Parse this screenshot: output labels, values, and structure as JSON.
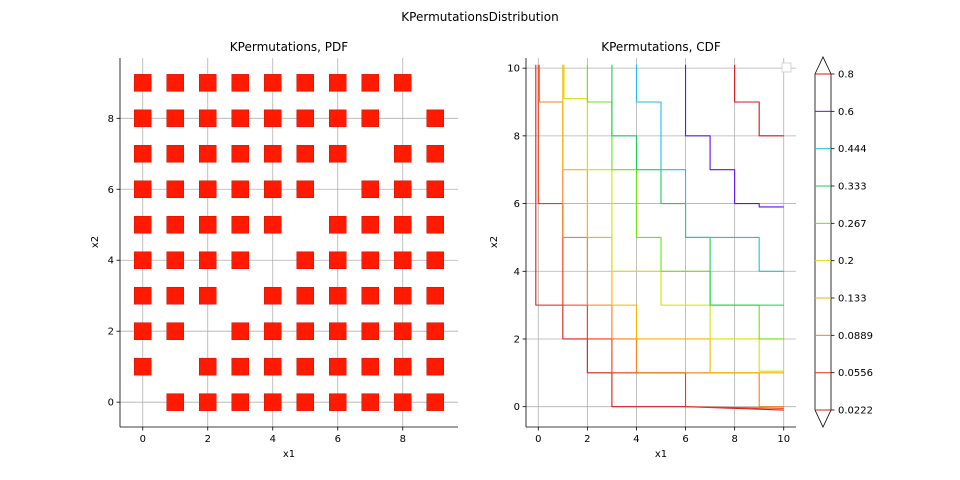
{
  "suptitle": "KPermutationsDistribution",
  "pdf_chart": {
    "type": "scatter",
    "title": "KPermutations, PDF",
    "xlabel": "x1",
    "ylabel": "x2",
    "xlim": [
      -0.7,
      9.7
    ],
    "ylim": [
      -0.7,
      9.7
    ],
    "xticks": [
      0,
      2,
      4,
      6,
      8
    ],
    "yticks": [
      0,
      2,
      4,
      6,
      8
    ],
    "grid": true,
    "marker": "square",
    "color": "#ff1a00",
    "points": [
      [
        0,
        1
      ],
      [
        0,
        2
      ],
      [
        0,
        3
      ],
      [
        0,
        4
      ],
      [
        0,
        5
      ],
      [
        0,
        6
      ],
      [
        0,
        7
      ],
      [
        0,
        8
      ],
      [
        0,
        9
      ],
      [
        1,
        0
      ],
      [
        1,
        2
      ],
      [
        1,
        3
      ],
      [
        1,
        4
      ],
      [
        1,
        5
      ],
      [
        1,
        6
      ],
      [
        1,
        7
      ],
      [
        1,
        8
      ],
      [
        1,
        9
      ],
      [
        2,
        0
      ],
      [
        2,
        1
      ],
      [
        2,
        3
      ],
      [
        2,
        4
      ],
      [
        2,
        5
      ],
      [
        2,
        6
      ],
      [
        2,
        7
      ],
      [
        2,
        8
      ],
      [
        2,
        9
      ],
      [
        3,
        0
      ],
      [
        3,
        1
      ],
      [
        3,
        2
      ],
      [
        3,
        4
      ],
      [
        3,
        5
      ],
      [
        3,
        6
      ],
      [
        3,
        7
      ],
      [
        3,
        8
      ],
      [
        3,
        9
      ],
      [
        4,
        0
      ],
      [
        4,
        1
      ],
      [
        4,
        2
      ],
      [
        4,
        3
      ],
      [
        4,
        5
      ],
      [
        4,
        6
      ],
      [
        4,
        7
      ],
      [
        4,
        8
      ],
      [
        4,
        9
      ],
      [
        5,
        0
      ],
      [
        5,
        1
      ],
      [
        5,
        2
      ],
      [
        5,
        3
      ],
      [
        5,
        4
      ],
      [
        5,
        6
      ],
      [
        5,
        7
      ],
      [
        5,
        8
      ],
      [
        5,
        9
      ],
      [
        6,
        0
      ],
      [
        6,
        1
      ],
      [
        6,
        2
      ],
      [
        6,
        3
      ],
      [
        6,
        4
      ],
      [
        6,
        5
      ],
      [
        6,
        7
      ],
      [
        6,
        8
      ],
      [
        6,
        9
      ],
      [
        7,
        0
      ],
      [
        7,
        1
      ],
      [
        7,
        2
      ],
      [
        7,
        3
      ],
      [
        7,
        4
      ],
      [
        7,
        5
      ],
      [
        7,
        6
      ],
      [
        7,
        8
      ],
      [
        7,
        9
      ],
      [
        8,
        0
      ],
      [
        8,
        1
      ],
      [
        8,
        2
      ],
      [
        8,
        3
      ],
      [
        8,
        4
      ],
      [
        8,
        5
      ],
      [
        8,
        6
      ],
      [
        8,
        7
      ],
      [
        8,
        9
      ],
      [
        9,
        0
      ],
      [
        9,
        1
      ],
      [
        9,
        2
      ],
      [
        9,
        3
      ],
      [
        9,
        4
      ],
      [
        9,
        5
      ],
      [
        9,
        6
      ],
      [
        9,
        7
      ],
      [
        9,
        8
      ]
    ]
  },
  "cdf_chart": {
    "type": "contour",
    "title": "KPermutations, CDF",
    "xlabel": "x1",
    "ylabel": "x2",
    "xlim": [
      -0.5,
      10.5
    ],
    "ylim": [
      -0.6,
      10.3
    ],
    "xticks": [
      0,
      2,
      4,
      6,
      8,
      10
    ],
    "yticks": [
      0,
      2,
      4,
      6,
      8,
      10
    ],
    "grid": true,
    "levels": [
      {
        "value": 0.0222,
        "label": "0.0222",
        "color": "#d4201a",
        "corners": [
          [
            -0.1,
            10.1
          ],
          [
            -0.1,
            3
          ],
          [
            1,
            3
          ],
          [
            1,
            2
          ],
          [
            2,
            2
          ],
          [
            2,
            1
          ],
          [
            3,
            1
          ],
          [
            3,
            0
          ],
          [
            6,
            0
          ],
          [
            6,
            0
          ],
          [
            10,
            -0.1
          ]
        ]
      },
      {
        "value": 0.0556,
        "label": "0.0556",
        "color": "#ef3b12",
        "corners": [
          [
            0,
            10.1
          ],
          [
            0,
            6
          ],
          [
            1,
            6
          ],
          [
            1,
            3
          ],
          [
            2,
            3
          ],
          [
            2,
            2
          ],
          [
            3,
            2
          ],
          [
            3,
            1
          ],
          [
            6,
            1
          ],
          [
            6,
            0
          ],
          [
            10,
            -0.05
          ]
        ]
      },
      {
        "value": 0.0889,
        "label": "0.0889",
        "color": "#f6801c",
        "corners": [
          [
            0.05,
            10.1
          ],
          [
            0.05,
            9
          ],
          [
            1,
            9
          ],
          [
            1,
            5
          ],
          [
            2,
            5
          ],
          [
            2,
            3
          ],
          [
            3,
            3
          ],
          [
            3,
            2
          ],
          [
            4,
            2
          ],
          [
            4,
            1
          ],
          [
            9,
            1
          ],
          [
            9,
            0
          ],
          [
            10,
            0
          ]
        ]
      },
      {
        "value": 0.133,
        "label": "0.133",
        "color": "#f3b600",
        "corners": [
          [
            1,
            10.1
          ],
          [
            1,
            7
          ],
          [
            2,
            7
          ],
          [
            2,
            5
          ],
          [
            3,
            5
          ],
          [
            3,
            3
          ],
          [
            4,
            3
          ],
          [
            4,
            2
          ],
          [
            7,
            2
          ],
          [
            7,
            1
          ],
          [
            10,
            1
          ]
        ]
      },
      {
        "value": 0.2,
        "label": "0.2",
        "color": "#d4e400",
        "corners": [
          [
            1.05,
            10.1
          ],
          [
            1.05,
            9.1
          ],
          [
            2,
            9.1
          ],
          [
            2,
            7
          ],
          [
            3,
            7
          ],
          [
            3,
            4
          ],
          [
            5,
            4
          ],
          [
            5,
            3
          ],
          [
            7,
            3
          ],
          [
            7,
            2
          ],
          [
            9,
            2
          ],
          [
            9,
            1.05
          ],
          [
            10,
            1.05
          ]
        ]
      },
      {
        "value": 0.267,
        "label": "0.267",
        "color": "#6ee40c",
        "corners": [
          [
            2,
            10.1
          ],
          [
            2,
            9
          ],
          [
            3,
            9
          ],
          [
            3,
            7
          ],
          [
            4,
            7
          ],
          [
            4,
            5
          ],
          [
            5,
            5
          ],
          [
            5,
            4
          ],
          [
            7,
            4
          ],
          [
            7,
            3
          ],
          [
            9,
            3
          ],
          [
            9,
            2
          ],
          [
            10,
            2
          ]
        ]
      },
      {
        "value": 0.333,
        "label": "0.333",
        "color": "#16d05a",
        "corners": [
          [
            3,
            10.1
          ],
          [
            3,
            8
          ],
          [
            4,
            8
          ],
          [
            4,
            7
          ],
          [
            5,
            7
          ],
          [
            5,
            6
          ],
          [
            6,
            6
          ],
          [
            6,
            5
          ],
          [
            7,
            5
          ],
          [
            7,
            3
          ],
          [
            10,
            3
          ]
        ]
      },
      {
        "value": 0.444,
        "label": "0.444",
        "color": "#1cc1df",
        "corners": [
          [
            4,
            10.1
          ],
          [
            4,
            9
          ],
          [
            5,
            9
          ],
          [
            5,
            7
          ],
          [
            6,
            7
          ],
          [
            6,
            5
          ],
          [
            7,
            5
          ],
          [
            7,
            5
          ],
          [
            9,
            5
          ],
          [
            9,
            4
          ],
          [
            10,
            4
          ]
        ]
      },
      {
        "value": 0.6,
        "label": "0.6",
        "color": "#6010ee",
        "corners": [
          [
            6,
            10.1
          ],
          [
            6,
            8
          ],
          [
            7,
            8
          ],
          [
            7,
            7
          ],
          [
            8,
            7
          ],
          [
            8,
            6
          ],
          [
            9,
            6
          ],
          [
            9,
            5.9
          ],
          [
            10,
            5.9
          ]
        ]
      },
      {
        "value": 0.8,
        "label": "0.8",
        "color": "#d4141a",
        "corners": [
          [
            8,
            10.1
          ],
          [
            8,
            9
          ],
          [
            9,
            9
          ],
          [
            9,
            8
          ],
          [
            10,
            8
          ]
        ]
      }
    ],
    "colorbar": {
      "ticks": [
        "0.0222",
        "0.0556",
        "0.0889",
        "0.133",
        "0.2",
        "0.267",
        "0.333",
        "0.444",
        "0.6",
        "0.8"
      ],
      "extend": "both"
    }
  }
}
